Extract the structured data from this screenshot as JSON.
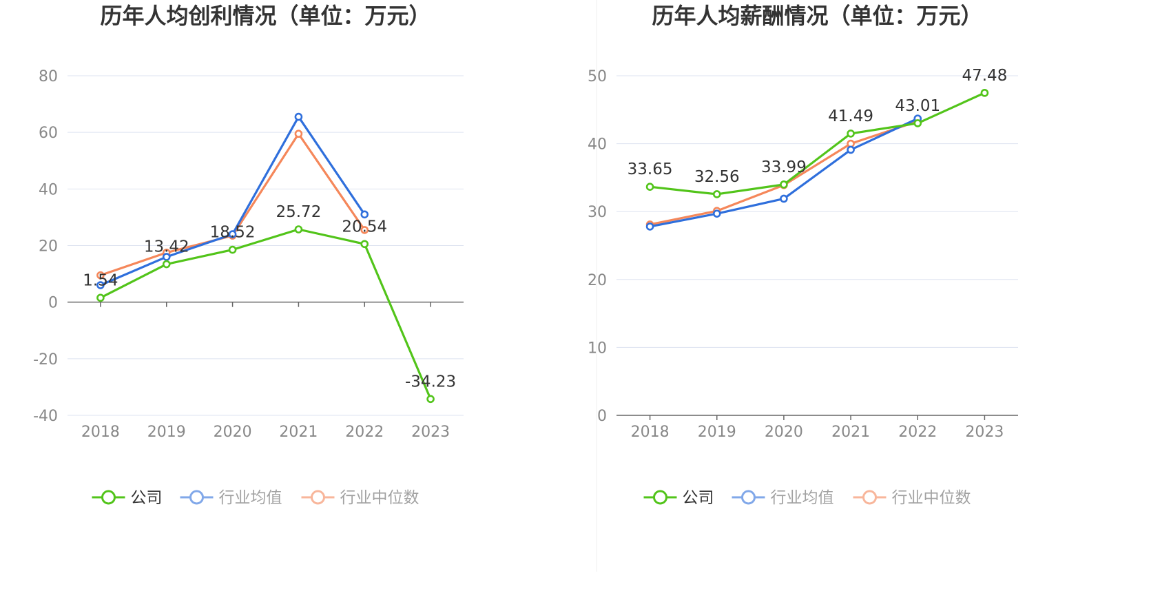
{
  "colors": {
    "company": "#52c41a",
    "average": "#2f6fdc",
    "median": "#f5875a",
    "grid": "#dde3f0",
    "axis": "#666666",
    "text": "#333333",
    "tick": "#888888"
  },
  "chart_data": [
    {
      "type": "line",
      "title": "历年人均创利情况（单位：万元）",
      "categories": [
        "2018",
        "2019",
        "2020",
        "2021",
        "2022",
        "2023"
      ],
      "ylim": [
        -40,
        80
      ],
      "yticks": [
        80,
        60,
        40,
        20,
        0,
        -20,
        -40
      ],
      "ytick_labels": [
        "80",
        "60",
        "40",
        "20",
        "0",
        "-20",
        "-40"
      ],
      "grid": true,
      "legend": "bottom",
      "series": [
        {
          "name": "公司",
          "key": "company",
          "values": [
            1.54,
            13.42,
            18.52,
            25.72,
            20.54,
            -34.23
          ],
          "labels": [
            "1.54",
            "13.42",
            "18.52",
            "25.72",
            "20.54",
            "-34.23"
          ]
        },
        {
          "name": "行业均值",
          "key": "average",
          "values": [
            6.0,
            16.0,
            24.0,
            65.5,
            31.0,
            null
          ]
        },
        {
          "name": "行业中位数",
          "key": "median",
          "values": [
            9.5,
            17.5,
            23.5,
            59.5,
            25.5,
            null
          ]
        }
      ]
    },
    {
      "type": "line",
      "title": "历年人均薪酬情况（单位：万元）",
      "categories": [
        "2018",
        "2019",
        "2020",
        "2021",
        "2022",
        "2023"
      ],
      "ylim": [
        0,
        50
      ],
      "yticks": [
        50,
        40,
        30,
        20,
        10,
        0
      ],
      "ytick_labels": [
        "50",
        "40",
        "30",
        "20",
        "10",
        "0"
      ],
      "grid": true,
      "legend": "bottom",
      "series": [
        {
          "name": "公司",
          "key": "company",
          "values": [
            33.65,
            32.56,
            33.99,
            41.49,
            43.01,
            47.48
          ],
          "labels": [
            "33.65",
            "32.56",
            "33.99",
            "41.49",
            "43.01",
            "47.48"
          ]
        },
        {
          "name": "行业均值",
          "key": "average",
          "values": [
            27.8,
            29.7,
            31.9,
            39.1,
            43.7,
            null
          ]
        },
        {
          "name": "行业中位数",
          "key": "median",
          "values": [
            28.1,
            30.1,
            33.9,
            40.0,
            43.3,
            null
          ]
        }
      ]
    }
  ]
}
